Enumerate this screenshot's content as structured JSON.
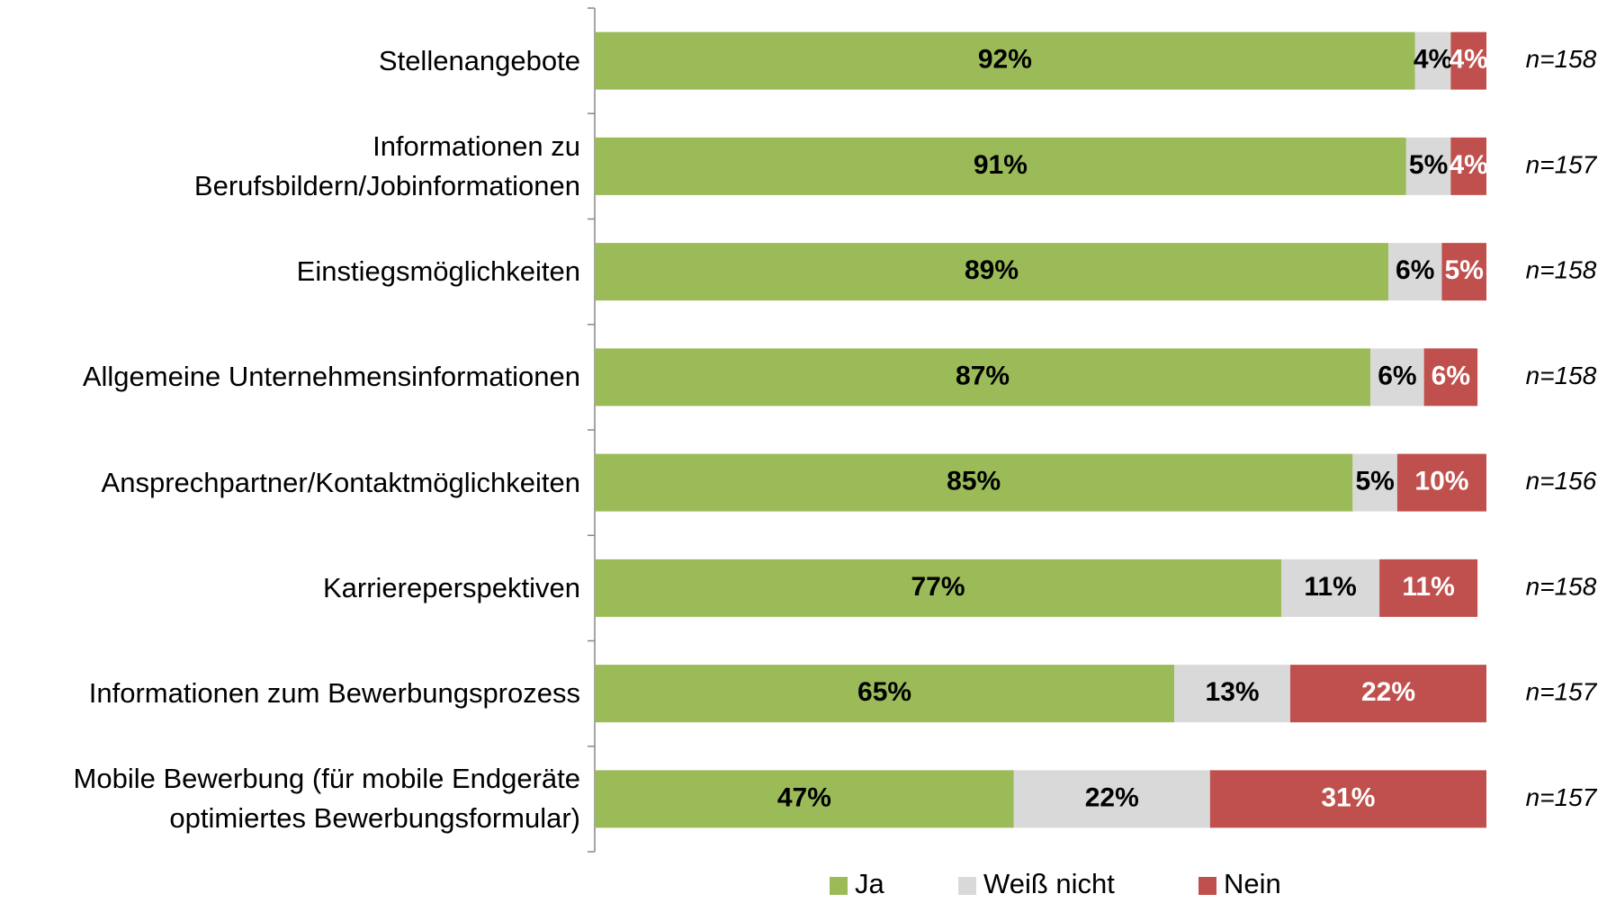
{
  "chart_data": {
    "type": "stacked-barh",
    "categories": [
      "Stellenangebote",
      "Informationen zu\nBerufsbildern/Jobinformationen",
      "Einstiegsmöglichkeiten",
      "Allgemeine Unternehmensinformationen",
      "Ansprechpartner/Kontaktmöglichkeiten",
      "Karriereperspektiven",
      "Informationen zum Bewerbungsprozess",
      "Mobile Bewerbung (für mobile Endgeräte\noptimiertes Bewerbungsformular)"
    ],
    "series": [
      {
        "name": "Ja",
        "color": "#9bbb59",
        "label_color": "#000000",
        "values": [
          92,
          91,
          89,
          87,
          85,
          77,
          65,
          47
        ],
        "value_labels": [
          "92%",
          "91%",
          "89%",
          "87%",
          "85%",
          "77%",
          "65%",
          "47%"
        ]
      },
      {
        "name": "Weiß nicht",
        "color": "#d9d9d9",
        "label_color": "#000000",
        "values": [
          4,
          5,
          6,
          6,
          5,
          11,
          13,
          22
        ],
        "value_labels": [
          "4%",
          "5%",
          "6%",
          "6%",
          "5%",
          "11%",
          "13%",
          "22%"
        ]
      },
      {
        "name": "Nein",
        "color": "#c0504d",
        "label_color": "#ffffff",
        "values": [
          4,
          4,
          5,
          6,
          10,
          11,
          22,
          31
        ],
        "value_labels": [
          "4%",
          "4%",
          "5%",
          "6%",
          "10%",
          "11%",
          "22%",
          "31%"
        ]
      }
    ],
    "n_labels": [
      "n=158",
      "n=157",
      "n=158",
      "n=158",
      "n=156",
      "n=158",
      "n=157",
      "n=157"
    ],
    "xlim": [
      0,
      100
    ],
    "legend": "bottom"
  }
}
